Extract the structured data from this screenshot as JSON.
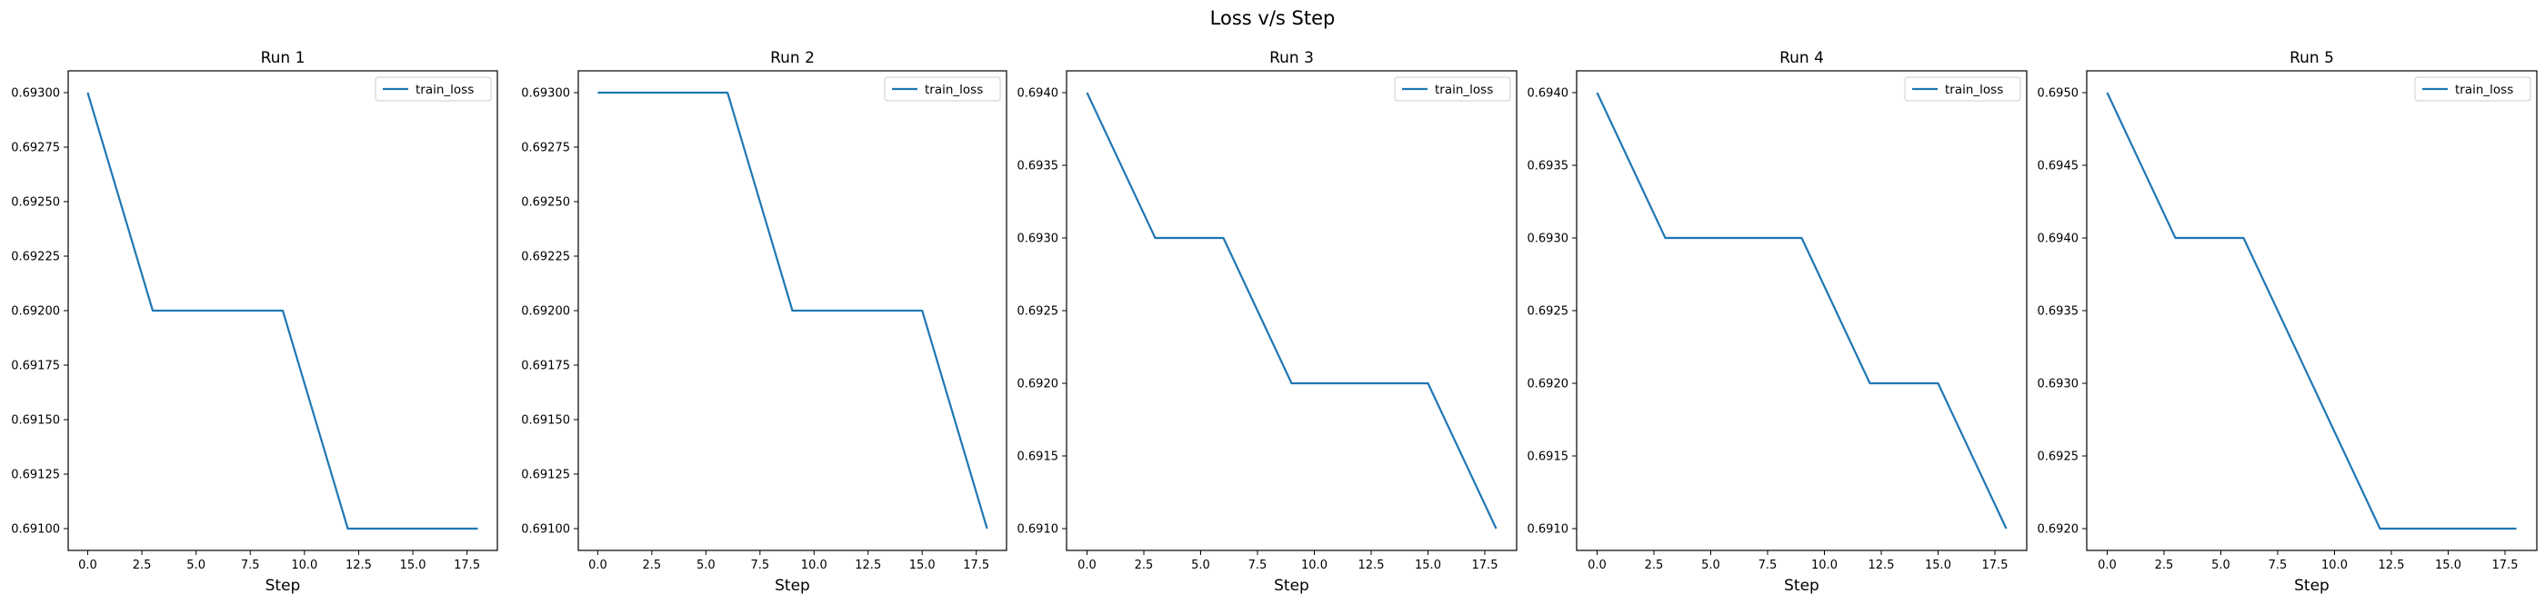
{
  "figure": {
    "title": "Loss v/s Step"
  },
  "style": {
    "line_color": "#1f77b4",
    "axis_color": "#000000",
    "background": "#ffffff"
  },
  "chart_data": [
    {
      "type": "line",
      "title": "Run 1",
      "xlabel": "Step",
      "ylabel": "",
      "x": [
        0,
        3,
        6,
        9,
        12,
        15,
        18
      ],
      "series": [
        {
          "name": "train_loss",
          "values": [
            0.693,
            0.692,
            0.692,
            0.692,
            0.691,
            0.691,
            0.691
          ]
        }
      ],
      "xlim": [
        -0.9,
        18.9
      ],
      "ylim": [
        0.6909,
        0.6931
      ],
      "xticks": [
        0,
        2.5,
        5,
        7.5,
        10,
        12.5,
        15,
        17.5
      ],
      "xtick_labels": [
        "0.0",
        "2.5",
        "5.0",
        "7.5",
        "10.0",
        "12.5",
        "15.0",
        "17.5"
      ],
      "yticks": [
        0.691,
        0.69125,
        0.6915,
        0.69175,
        0.692,
        0.69225,
        0.6925,
        0.69275,
        0.693
      ],
      "ytick_labels": [
        "0.69100",
        "0.69125",
        "0.69150",
        "0.69175",
        "0.69200",
        "0.69225",
        "0.69250",
        "0.69275",
        "0.69300"
      ],
      "legend": "top-right",
      "grid": false
    },
    {
      "type": "line",
      "title": "Run 2",
      "xlabel": "Step",
      "ylabel": "",
      "x": [
        0,
        3,
        6,
        9,
        12,
        15,
        18
      ],
      "series": [
        {
          "name": "train_loss",
          "values": [
            0.693,
            0.693,
            0.693,
            0.692,
            0.692,
            0.692,
            0.691
          ]
        }
      ],
      "xlim": [
        -0.9,
        18.9
      ],
      "ylim": [
        0.6909,
        0.6931
      ],
      "xticks": [
        0,
        2.5,
        5,
        7.5,
        10,
        12.5,
        15,
        17.5
      ],
      "xtick_labels": [
        "0.0",
        "2.5",
        "5.0",
        "7.5",
        "10.0",
        "12.5",
        "15.0",
        "17.5"
      ],
      "yticks": [
        0.691,
        0.69125,
        0.6915,
        0.69175,
        0.692,
        0.69225,
        0.6925,
        0.69275,
        0.693
      ],
      "ytick_labels": [
        "0.69100",
        "0.69125",
        "0.69150",
        "0.69175",
        "0.69200",
        "0.69225",
        "0.69250",
        "0.69275",
        "0.69300"
      ],
      "legend": "top-right",
      "grid": false
    },
    {
      "type": "line",
      "title": "Run 3",
      "xlabel": "Step",
      "ylabel": "",
      "x": [
        0,
        3,
        6,
        9,
        12,
        15,
        18
      ],
      "series": [
        {
          "name": "train_loss",
          "values": [
            0.694,
            0.693,
            0.693,
            0.692,
            0.692,
            0.692,
            0.691
          ]
        }
      ],
      "xlim": [
        -0.9,
        18.9
      ],
      "ylim": [
        0.69085,
        0.69415
      ],
      "xticks": [
        0,
        2.5,
        5,
        7.5,
        10,
        12.5,
        15,
        17.5
      ],
      "xtick_labels": [
        "0.0",
        "2.5",
        "5.0",
        "7.5",
        "10.0",
        "12.5",
        "15.0",
        "17.5"
      ],
      "yticks": [
        0.691,
        0.6915,
        0.692,
        0.6925,
        0.693,
        0.6935,
        0.694
      ],
      "ytick_labels": [
        "0.6910",
        "0.6915",
        "0.6920",
        "0.6925",
        "0.6930",
        "0.6935",
        "0.6940"
      ],
      "legend": "top-right",
      "grid": false
    },
    {
      "type": "line",
      "title": "Run 4",
      "xlabel": "Step",
      "ylabel": "",
      "x": [
        0,
        3,
        6,
        9,
        12,
        15,
        18
      ],
      "series": [
        {
          "name": "train_loss",
          "values": [
            0.694,
            0.693,
            0.693,
            0.693,
            0.692,
            0.692,
            0.691
          ]
        }
      ],
      "xlim": [
        -0.9,
        18.9
      ],
      "ylim": [
        0.69085,
        0.69415
      ],
      "xticks": [
        0,
        2.5,
        5,
        7.5,
        10,
        12.5,
        15,
        17.5
      ],
      "xtick_labels": [
        "0.0",
        "2.5",
        "5.0",
        "7.5",
        "10.0",
        "12.5",
        "15.0",
        "17.5"
      ],
      "yticks": [
        0.691,
        0.6915,
        0.692,
        0.6925,
        0.693,
        0.6935,
        0.694
      ],
      "ytick_labels": [
        "0.6910",
        "0.6915",
        "0.6920",
        "0.6925",
        "0.6930",
        "0.6935",
        "0.6940"
      ],
      "legend": "top-right",
      "grid": false
    },
    {
      "type": "line",
      "title": "Run 5",
      "xlabel": "Step",
      "ylabel": "",
      "x": [
        0,
        3,
        6,
        9,
        12,
        15,
        18
      ],
      "series": [
        {
          "name": "train_loss",
          "values": [
            0.695,
            0.694,
            0.694,
            0.693,
            0.692,
            0.692,
            0.692
          ]
        }
      ],
      "xlim": [
        -0.9,
        18.9
      ],
      "ylim": [
        0.69185,
        0.69515
      ],
      "xticks": [
        0,
        2.5,
        5,
        7.5,
        10,
        12.5,
        15,
        17.5
      ],
      "xtick_labels": [
        "0.0",
        "2.5",
        "5.0",
        "7.5",
        "10.0",
        "12.5",
        "15.0",
        "17.5"
      ],
      "yticks": [
        0.692,
        0.6925,
        0.693,
        0.6935,
        0.694,
        0.6945,
        0.695
      ],
      "ytick_labels": [
        "0.6920",
        "0.6925",
        "0.6930",
        "0.6935",
        "0.6940",
        "0.6945",
        "0.6950"
      ],
      "legend": "top-right",
      "grid": false
    }
  ]
}
